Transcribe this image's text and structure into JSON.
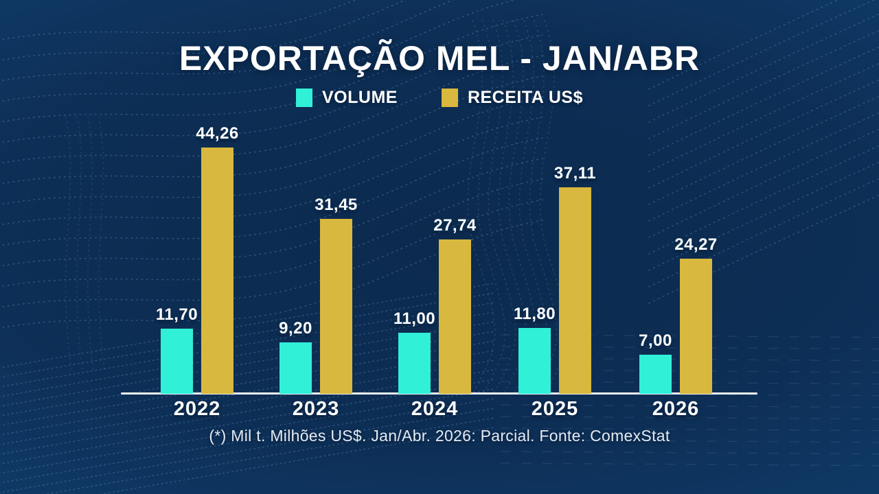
{
  "title": "EXPORTAÇÃO MEL - JAN/ABR",
  "legend": {
    "items": [
      {
        "label": "VOLUME",
        "color": "#30F0D8"
      },
      {
        "label": "RECEITA US$",
        "color": "#D8B83E"
      }
    ]
  },
  "footer": {
    "note": "(*) Mil t. Milhões US$. Jan/Abr. 2026: Parcial. Fonte: ComexStat"
  },
  "colors": {
    "background_center": "#0C2A4E",
    "background_edge": "#124A7D",
    "volume": "#30F0D8",
    "receita": "#D8B83E",
    "axis": "#EEF3F8",
    "text": "#FFFFFF",
    "pattern": "#7FA8D4"
  },
  "chart_data": {
    "type": "bar",
    "title": "EXPORTAÇÃO MEL - JAN/ABR",
    "categories": [
      "2022",
      "2023",
      "2024",
      "2025",
      "2026"
    ],
    "series": [
      {
        "name": "VOLUME",
        "color": "#30F0D8",
        "values": [
          11.7,
          9.2,
          11.0,
          11.8,
          7.0
        ],
        "labels": [
          "11,70",
          "9,20",
          "11,00",
          "11,80",
          "7,00"
        ]
      },
      {
        "name": "RECEITA US$",
        "color": "#D8B83E",
        "values": [
          44.26,
          31.45,
          27.74,
          37.11,
          24.27
        ],
        "labels": [
          "44,26",
          "31,45",
          "27,74",
          "37,11",
          "24,27"
        ]
      }
    ],
    "ylim": [
      0,
      46
    ],
    "grid": false,
    "legend_position": "top",
    "value_label_decimal": "comma",
    "footnote": "(*) Mil t. Milhões US$. Jan/Abr. 2026: Parcial. Fonte: ComexStat"
  }
}
